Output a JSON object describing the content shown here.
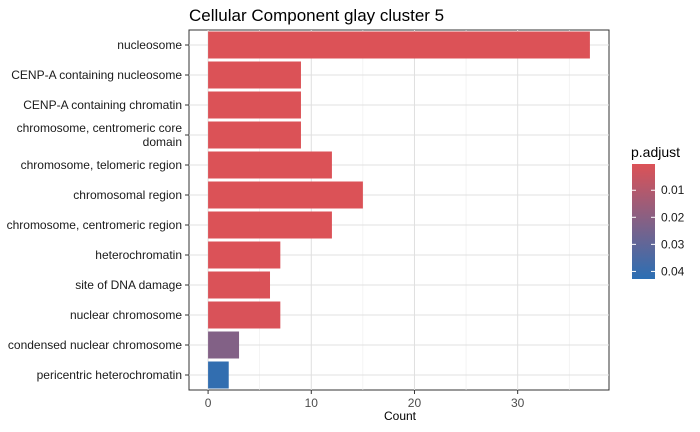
{
  "chart_data": {
    "type": "bar",
    "orientation": "horizontal",
    "title": "Cellular Component glay cluster 5",
    "xlabel": "Count",
    "ylabel": "",
    "xlim": [
      -1.85,
      38.85
    ],
    "x_ticks": [
      0,
      10,
      20,
      30
    ],
    "grid": true,
    "categories": [
      "nucleosome",
      "CENP-A containing nucleosome",
      "CENP-A containing chromatin",
      "chromosome, centromeric core\ndomain",
      "chromosome, telomeric region",
      "chromosomal region",
      "chromosome, centromeric region",
      "heterochromatin",
      "site of DNA damage",
      "nuclear chromosome",
      "condensed nuclear chromosome",
      "pericentric heterochromatin"
    ],
    "values": [
      37,
      9,
      9,
      9,
      12,
      15,
      12,
      7,
      6,
      7,
      3,
      2
    ],
    "p_adjust": [
      0.0003,
      0.0005,
      0.0005,
      0.0005,
      0.0005,
      0.0005,
      0.0005,
      0.0006,
      0.0008,
      0.001,
      0.022,
      0.041
    ],
    "legend": {
      "title": "p.adjust",
      "position": "right",
      "ticks": [
        0.01,
        0.02,
        0.03,
        0.04
      ],
      "tick_labels": [
        "0.01",
        "0.02",
        "0.03",
        "0.04"
      ],
      "range": [
        0.0003,
        0.0428
      ],
      "color_low_p": "#dc5257",
      "color_high_p": "#2b6fb4"
    }
  }
}
